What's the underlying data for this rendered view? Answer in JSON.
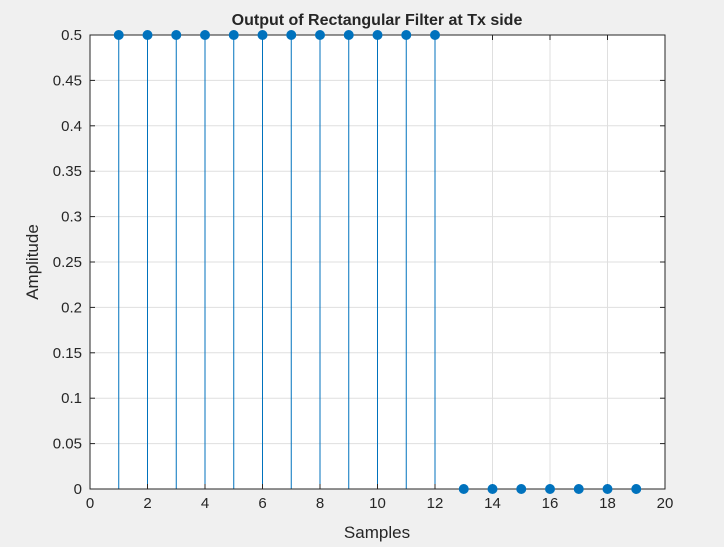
{
  "chart_data": {
    "type": "stem",
    "title": "Output of Rectangular Filter at Tx side",
    "xlabel": "Samples",
    "ylabel": "Amplitude",
    "xlim": [
      0,
      20
    ],
    "ylim": [
      0,
      0.5
    ],
    "xticks": [
      0,
      2,
      4,
      6,
      8,
      10,
      12,
      14,
      16,
      18,
      20
    ],
    "yticks": [
      0,
      0.05,
      0.1,
      0.15,
      0.2,
      0.25,
      0.3,
      0.35,
      0.4,
      0.45,
      0.5
    ],
    "xtick_labels": [
      "0",
      "2",
      "4",
      "6",
      "8",
      "10",
      "12",
      "14",
      "16",
      "18",
      "20"
    ],
    "ytick_labels": [
      "0",
      "0.05",
      "0.1",
      "0.15",
      "0.2",
      "0.25",
      "0.3",
      "0.35",
      "0.4",
      "0.45",
      "0.5"
    ],
    "grid": true,
    "color": "#0072bd",
    "x": [
      1,
      2,
      3,
      4,
      5,
      6,
      7,
      8,
      9,
      10,
      11,
      12,
      13,
      14,
      15,
      16,
      17,
      18,
      19
    ],
    "y": [
      0.5,
      0.5,
      0.5,
      0.5,
      0.5,
      0.5,
      0.5,
      0.5,
      0.5,
      0.5,
      0.5,
      0.5,
      0,
      0,
      0,
      0,
      0,
      0,
      0
    ]
  }
}
